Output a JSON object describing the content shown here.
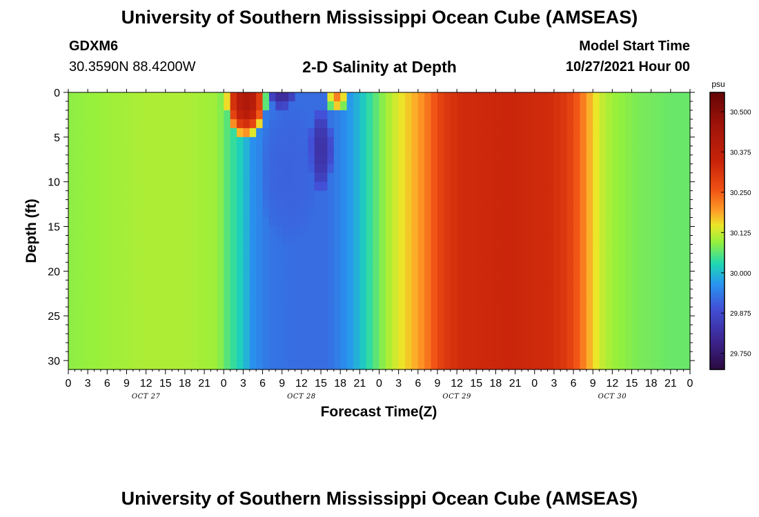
{
  "header": {
    "title": "University of Southern Mississippi Ocean Cube (AMSEAS)",
    "station": "GDXM6",
    "coords": "30.3590N  88.4200W",
    "plot_title": "2-D Salinity at Depth",
    "start_label": "Model Start Time",
    "start_value": "10/27/2021 Hour 00"
  },
  "footer": {
    "title": "University of Southern Mississippi Ocean Cube (AMSEAS)"
  },
  "chart_data": {
    "type": "heatmap",
    "xlabel": "Forecast Time(Z)",
    "ylabel": "Depth (ft)",
    "x_range_hours": [
      0,
      96
    ],
    "y_range_ft": [
      0,
      31
    ],
    "y_ticks": [
      0,
      5,
      10,
      15,
      20,
      25,
      30
    ],
    "x_tick_labels": [
      "0",
      "3",
      "6",
      "9",
      "12",
      "15",
      "18",
      "21",
      "0",
      "3",
      "6",
      "9",
      "12",
      "15",
      "18",
      "21",
      "0",
      "3",
      "6",
      "9",
      "12",
      "15",
      "18",
      "21",
      "0",
      "3",
      "6",
      "9",
      "12",
      "15",
      "18",
      "21",
      "0"
    ],
    "day_labels": [
      "OCT 27",
      "OCT 28",
      "OCT 29",
      "OCT 30"
    ],
    "colorbar": {
      "unit": "psu",
      "min": 29.7,
      "max": 30.56,
      "ticks": [
        "30.500",
        "30.375",
        "30.250",
        "30.125",
        "30.000",
        "29.875",
        "29.750"
      ]
    },
    "surface_profile": [
      {
        "hour": 0,
        "value": 30.09
      },
      {
        "hour": 6,
        "value": 30.1
      },
      {
        "hour": 12,
        "value": 30.11
      },
      {
        "hour": 18,
        "value": 30.11
      },
      {
        "hour": 23,
        "value": 30.1
      },
      {
        "hour": 24.5,
        "value": 30.06
      },
      {
        "hour": 27,
        "value": 30.01
      },
      {
        "hour": 28.5,
        "value": 29.96
      },
      {
        "hour": 31,
        "value": 29.93
      },
      {
        "hour": 36,
        "value": 29.92
      },
      {
        "hour": 40,
        "value": 29.92
      },
      {
        "hour": 43,
        "value": 29.96
      },
      {
        "hour": 45,
        "value": 30.0
      },
      {
        "hour": 47,
        "value": 30.05
      },
      {
        "hour": 49,
        "value": 30.1
      },
      {
        "hour": 51,
        "value": 30.14
      },
      {
        "hour": 54,
        "value": 30.19
      },
      {
        "hour": 56,
        "value": 30.24
      },
      {
        "hour": 58,
        "value": 30.3
      },
      {
        "hour": 61,
        "value": 30.33
      },
      {
        "hour": 68,
        "value": 30.34
      },
      {
        "hour": 74,
        "value": 30.33
      },
      {
        "hour": 77,
        "value": 30.3
      },
      {
        "hour": 79,
        "value": 30.24
      },
      {
        "hour": 80.5,
        "value": 30.18
      },
      {
        "hour": 82,
        "value": 30.13
      },
      {
        "hour": 84,
        "value": 30.1
      },
      {
        "hour": 88,
        "value": 30.08
      },
      {
        "hour": 93,
        "value": 30.07
      },
      {
        "hour": 96,
        "value": 30.07
      }
    ],
    "features": [
      {
        "type": "high",
        "hour": 27.5,
        "depth": 1,
        "rx_h": 3.2,
        "ry_ft": 4.2,
        "value": 30.42
      },
      {
        "type": "high",
        "hour": 41.5,
        "depth": 0.6,
        "rx_h": 1.6,
        "ry_ft": 1.6,
        "value": 30.22
      },
      {
        "type": "low",
        "hour": 33,
        "depth": 0,
        "rx_h": 2.0,
        "ry_ft": 2.0,
        "value": 29.8
      },
      {
        "type": "low",
        "hour": 39,
        "depth": 6.5,
        "rx_h": 1.8,
        "ry_ft": 4.5,
        "value": 29.82
      },
      {
        "type": "low",
        "hour": 34,
        "depth": 9,
        "rx_h": 4.5,
        "ry_ft": 8.0,
        "value": 29.91
      }
    ]
  }
}
